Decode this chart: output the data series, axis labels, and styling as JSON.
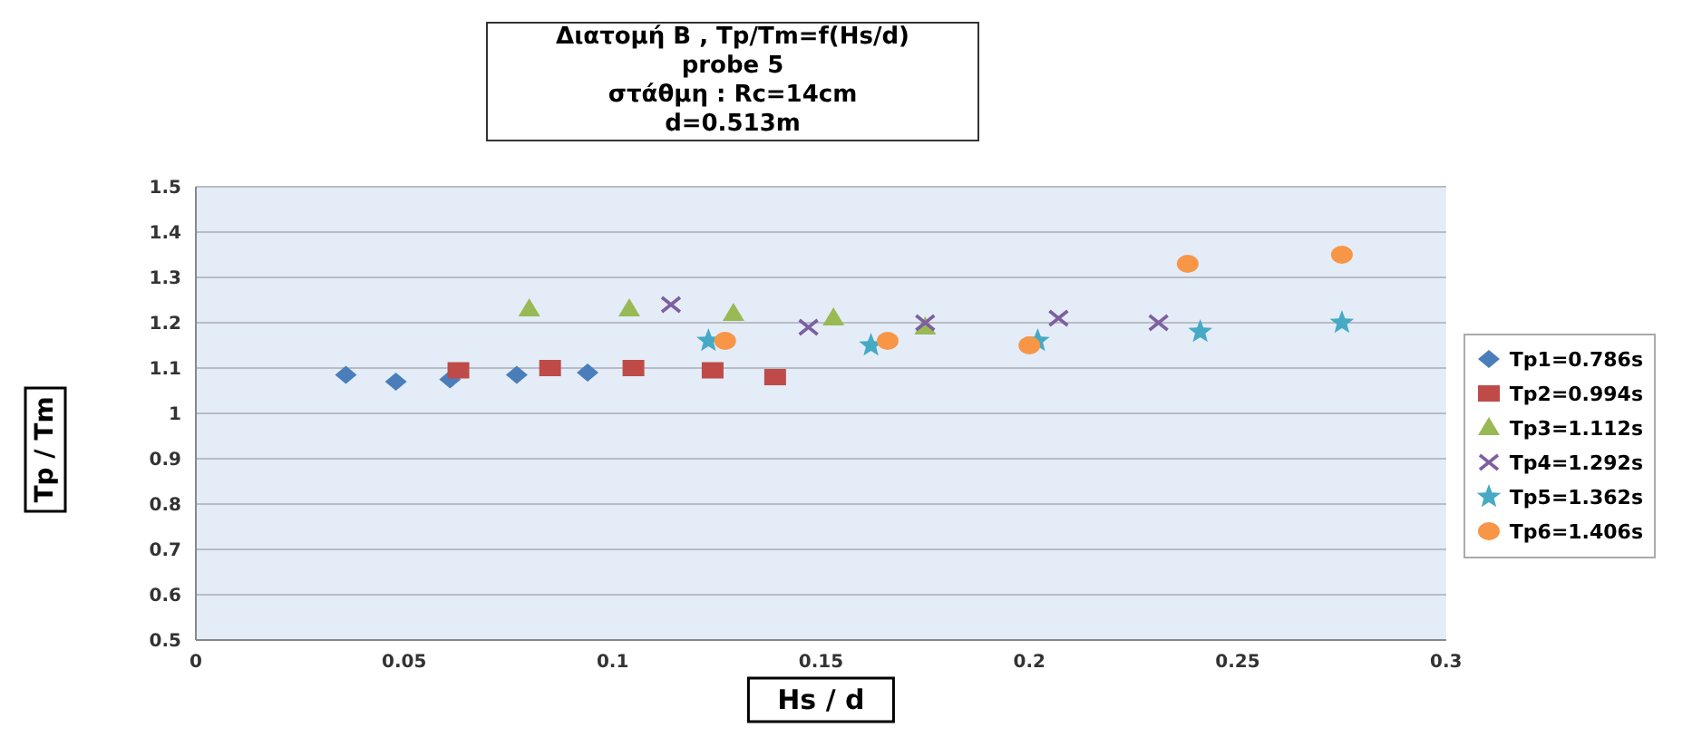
{
  "chart_data": {
    "type": "scatter",
    "title": "Διατομή Β , Tp/Tm=f(Hs/d)\nprobe 5\nστάθμη :  Rc=14cm\nd=0.513m",
    "xlabel": "Hs  /  d",
    "ylabel": "Tp / Tm",
    "xlim": [
      0,
      0.3
    ],
    "xticks": [
      0,
      0.05,
      0.1,
      0.15,
      0.2,
      0.25,
      0.3
    ],
    "ylim": [
      0.5,
      1.5
    ],
    "yticks": [
      0.5,
      0.6,
      0.7,
      0.8,
      0.9,
      1,
      1.1,
      1.2,
      1.3,
      1.4,
      1.5
    ],
    "grid": "y",
    "legend": "right",
    "series": [
      {
        "name": "Tp1=0.786s",
        "color": "#4a7ebb",
        "marker": "diamond",
        "x": [
          0.036,
          0.048,
          0.061,
          0.077,
          0.094
        ],
        "values": [
          1.085,
          1.07,
          1.075,
          1.085,
          1.09
        ]
      },
      {
        "name": "Tp2=0.994s",
        "color": "#be4b48",
        "marker": "square",
        "x": [
          0.063,
          0.085,
          0.105,
          0.124,
          0.139
        ],
        "values": [
          1.095,
          1.1,
          1.1,
          1.095,
          1.08
        ]
      },
      {
        "name": "Tp3=1.112s",
        "color": "#98b954",
        "marker": "triangle",
        "x": [
          0.08,
          0.104,
          0.129,
          0.153,
          0.175
        ],
        "values": [
          1.23,
          1.23,
          1.22,
          1.21,
          1.19
        ]
      },
      {
        "name": "Tp4=1.292s",
        "color": "#7d60a0",
        "marker": "cross",
        "x": [
          0.114,
          0.147,
          0.175,
          0.207,
          0.231
        ],
        "values": [
          1.24,
          1.19,
          1.2,
          1.21,
          1.2
        ]
      },
      {
        "name": "Tp5=1.362s",
        "color": "#46aac5",
        "marker": "star",
        "x": [
          0.123,
          0.162,
          0.202,
          0.241,
          0.275
        ],
        "values": [
          1.16,
          1.15,
          1.16,
          1.18,
          1.2
        ]
      },
      {
        "name": "Tp6=1.406s",
        "color": "#f79646",
        "marker": "circle",
        "x": [
          0.127,
          0.166,
          0.2,
          0.238,
          0.275
        ],
        "values": [
          1.16,
          1.16,
          1.15,
          1.33,
          1.35
        ]
      }
    ]
  }
}
